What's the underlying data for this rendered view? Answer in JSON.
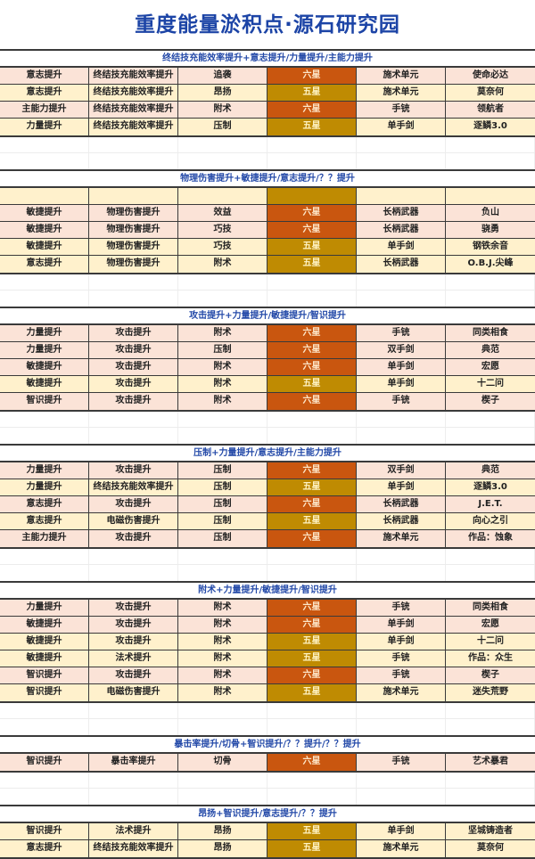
{
  "title": "重度能量淤积点·源石研究园",
  "colors": {
    "six_star": "#c9560f",
    "five_star": "#bf8b02",
    "six_row": "#fbe3d7",
    "five_row": "#fff1cc",
    "header_text": "#2349a8",
    "title_text": "#1c44a6"
  },
  "sections": [
    {
      "header": "终结技充能效率提升+意志提升/力量提升/主能力提升",
      "rows": [
        {
          "cells": [
            "意志提升",
            "终结技充能效率提升",
            "追袭",
            "六星",
            "施术单元",
            "使命必达"
          ],
          "tier": "six"
        },
        {
          "cells": [
            "意志提升",
            "终结技充能效率提升",
            "昂扬",
            "五星",
            "施术单元",
            "莫奈何"
          ],
          "tier": "five"
        },
        {
          "cells": [
            "主能力提升",
            "终结技充能效率提升",
            "附术",
            "六星",
            "手铳",
            "领航者"
          ],
          "tier": "six"
        },
        {
          "cells": [
            "力量提升",
            "终结技充能效率提升",
            "压制",
            "五星",
            "单手剑",
            "逐鳞3.0"
          ],
          "tier": "five"
        }
      ]
    },
    {
      "header": "物理伤害提升+敏捷提升/意志提升/？？提升",
      "rows": [
        {
          "cells": [
            "",
            "",
            "",
            "",
            "",
            ""
          ],
          "tier": "five"
        },
        {
          "cells": [
            "敏捷提升",
            "物理伤害提升",
            "效益",
            "六星",
            "长柄武器",
            "负山"
          ],
          "tier": "six"
        },
        {
          "cells": [
            "敏捷提升",
            "物理伤害提升",
            "巧技",
            "六星",
            "长柄武器",
            "骁勇"
          ],
          "tier": "six"
        },
        {
          "cells": [
            "敏捷提升",
            "物理伤害提升",
            "巧技",
            "五星",
            "单手剑",
            "钢铁余音"
          ],
          "tier": "five"
        },
        {
          "cells": [
            "意志提升",
            "物理伤害提升",
            "附术",
            "五星",
            "长柄武器",
            "O.B.J.尖峰"
          ],
          "tier": "five"
        }
      ]
    },
    {
      "header": "攻击提升+力量提升/敏捷提升/智识提升",
      "rows": [
        {
          "cells": [
            "力量提升",
            "攻击提升",
            "附术",
            "六星",
            "手铳",
            "同类相食"
          ],
          "tier": "six"
        },
        {
          "cells": [
            "力量提升",
            "攻击提升",
            "压制",
            "六星",
            "双手剑",
            "典范"
          ],
          "tier": "six"
        },
        {
          "cells": [
            "敏捷提升",
            "攻击提升",
            "附术",
            "六星",
            "单手剑",
            "宏愿"
          ],
          "tier": "six"
        },
        {
          "cells": [
            "敏捷提升",
            "攻击提升",
            "附术",
            "五星",
            "单手剑",
            "十二问"
          ],
          "tier": "five"
        },
        {
          "cells": [
            "智识提升",
            "攻击提升",
            "附术",
            "六星",
            "手铳",
            "楔子"
          ],
          "tier": "six"
        }
      ]
    },
    {
      "header": "压制+力量提升/意志提升/主能力提升",
      "rows": [
        {
          "cells": [
            "力量提升",
            "攻击提升",
            "压制",
            "六星",
            "双手剑",
            "典范"
          ],
          "tier": "six"
        },
        {
          "cells": [
            "力量提升",
            "终结技充能效率提升",
            "压制",
            "五星",
            "单手剑",
            "逐鳞3.0"
          ],
          "tier": "five"
        },
        {
          "cells": [
            "意志提升",
            "攻击提升",
            "压制",
            "六星",
            "长柄武器",
            "J.E.T."
          ],
          "tier": "six"
        },
        {
          "cells": [
            "意志提升",
            "电磁伤害提升",
            "压制",
            "五星",
            "长柄武器",
            "向心之引"
          ],
          "tier": "five"
        },
        {
          "cells": [
            "主能力提升",
            "攻击提升",
            "压制",
            "六星",
            "施术单元",
            "作品：蚀象"
          ],
          "tier": "six"
        }
      ]
    },
    {
      "header": "附术+力量提升/敏捷提升/智识提升",
      "rows": [
        {
          "cells": [
            "力量提升",
            "攻击提升",
            "附术",
            "六星",
            "手铳",
            "同类相食"
          ],
          "tier": "six"
        },
        {
          "cells": [
            "敏捷提升",
            "攻击提升",
            "附术",
            "六星",
            "单手剑",
            "宏愿"
          ],
          "tier": "six"
        },
        {
          "cells": [
            "敏捷提升",
            "攻击提升",
            "附术",
            "五星",
            "单手剑",
            "十二问"
          ],
          "tier": "five"
        },
        {
          "cells": [
            "敏捷提升",
            "法术提升",
            "附术",
            "五星",
            "手铳",
            "作品：众生"
          ],
          "tier": "five"
        },
        {
          "cells": [
            "智识提升",
            "攻击提升",
            "附术",
            "六星",
            "手铳",
            "楔子"
          ],
          "tier": "six"
        },
        {
          "cells": [
            "智识提升",
            "电磁伤害提升",
            "附术",
            "五星",
            "施术单元",
            "迷失荒野"
          ],
          "tier": "five"
        }
      ]
    },
    {
      "header": "暴击率提升/切骨+智识提升/？？提升/？？提升",
      "rows": [
        {
          "cells": [
            "智识提升",
            "暴击率提升",
            "切骨",
            "六星",
            "手铳",
            "艺术暴君"
          ],
          "tier": "six"
        }
      ]
    },
    {
      "header": "昂扬+智识提升/意志提升/？？提升",
      "rows": [
        {
          "cells": [
            "智识提升",
            "法术提升",
            "昂扬",
            "五星",
            "单手剑",
            "坚城铸造者"
          ],
          "tier": "five"
        },
        {
          "cells": [
            "意志提升",
            "终结技充能效率提升",
            "昂扬",
            "五星",
            "施术单元",
            "莫奈何"
          ],
          "tier": "five"
        }
      ]
    }
  ]
}
